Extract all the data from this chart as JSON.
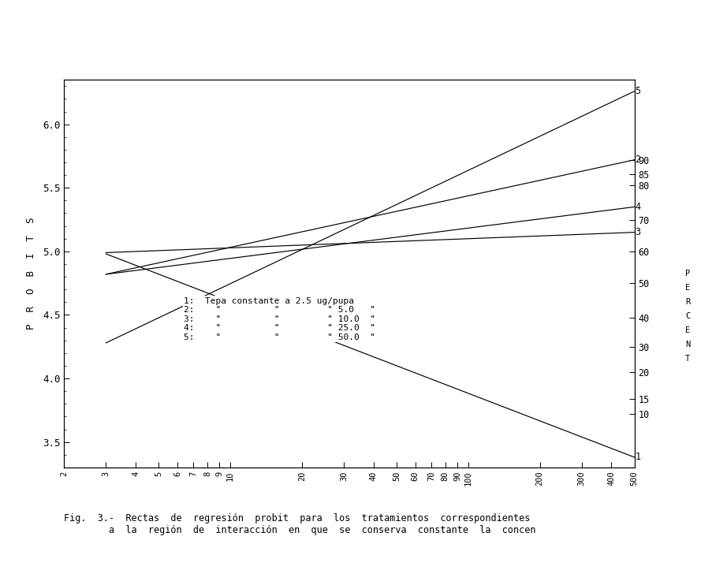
{
  "caption": "Fig.  3.-  Rectas  de  regresión  probit  para  los  tratamientos  correspondientes\n        a  la  región  de  interacción  en  que  se  conserva  constante  la  concen",
  "xlim_log": [
    2,
    500
  ],
  "ylim": [
    3.3,
    6.35
  ],
  "x_ticks": [
    2,
    3,
    4,
    5,
    6,
    7,
    8,
    9,
    10,
    20,
    30,
    40,
    50,
    60,
    70,
    80,
    90,
    100,
    200,
    300,
    400,
    500
  ],
  "x_tick_labels": [
    "2",
    "3",
    "4",
    "5",
    "6",
    "7",
    "8",
    "9",
    "10",
    "20",
    "30",
    "40",
    "50",
    "60",
    "70",
    "80",
    "90",
    "100",
    "200",
    "300",
    "400",
    "500"
  ],
  "y_left_ticks": [
    3.5,
    4.0,
    4.5,
    5.0,
    5.5,
    6.0
  ],
  "y_left_labels": [
    "3.5",
    "4.0",
    "4.5",
    "5.0",
    "5.5",
    "6.0"
  ],
  "right_axis_ticks_probit": [
    3.72,
    3.84,
    4.05,
    4.25,
    4.48,
    4.75,
    5.0,
    5.25,
    5.52,
    5.61,
    5.72
  ],
  "right_axis_labels": [
    "10",
    "15",
    "20",
    "30",
    "40",
    "50",
    "60",
    "70",
    "80",
    "85",
    "90"
  ],
  "lines": [
    {
      "label": "1",
      "x_start": 3.0,
      "x_end": 500,
      "y_start": 4.98,
      "y_end": 3.38,
      "color": "#000000"
    },
    {
      "label": "2",
      "x_start": 3.0,
      "x_end": 500,
      "y_start": 4.82,
      "y_end": 5.72,
      "color": "#000000"
    },
    {
      "label": "3",
      "x_start": 3.0,
      "x_end": 500,
      "y_start": 4.99,
      "y_end": 5.15,
      "color": "#000000"
    },
    {
      "label": "4",
      "x_start": 3.0,
      "x_end": 500,
      "y_start": 4.82,
      "y_end": 5.35,
      "color": "#000000"
    },
    {
      "label": "5",
      "x_start": 3.0,
      "x_end": 500,
      "y_start": 4.28,
      "y_end": 6.26,
      "color": "#000000"
    }
  ],
  "background_color": "#ffffff"
}
